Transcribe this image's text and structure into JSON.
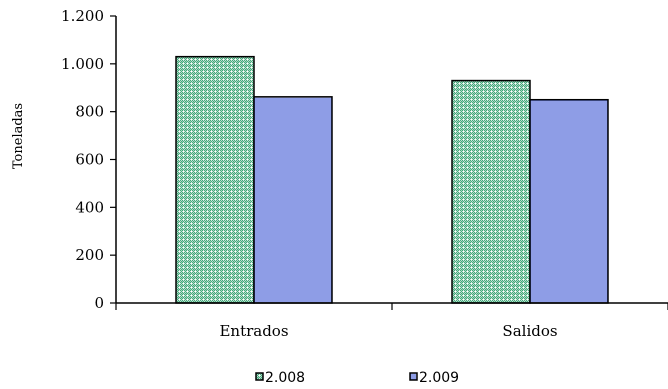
{
  "chart_data": {
    "type": "bar",
    "ylabel": "Toneladas",
    "xlabel": "",
    "categories": [
      "Entrados",
      "Salidos"
    ],
    "series": [
      {
        "name": "2.008",
        "values": [
          1030,
          930
        ]
      },
      {
        "name": "2.009",
        "values": [
          862,
          850
        ]
      }
    ],
    "ylim": [
      0,
      1200
    ],
    "yticks": [
      0,
      200,
      400,
      600,
      800,
      1000,
      1200
    ],
    "ytick_labels": [
      "0",
      "200",
      "400",
      "600",
      "800",
      "1.000",
      "1.200"
    ],
    "grid": false,
    "legend_position": "bottom",
    "colors": {
      "2.008": "#2e9e6b",
      "2.009": "#4a63d8",
      "axis": "#000000"
    }
  }
}
